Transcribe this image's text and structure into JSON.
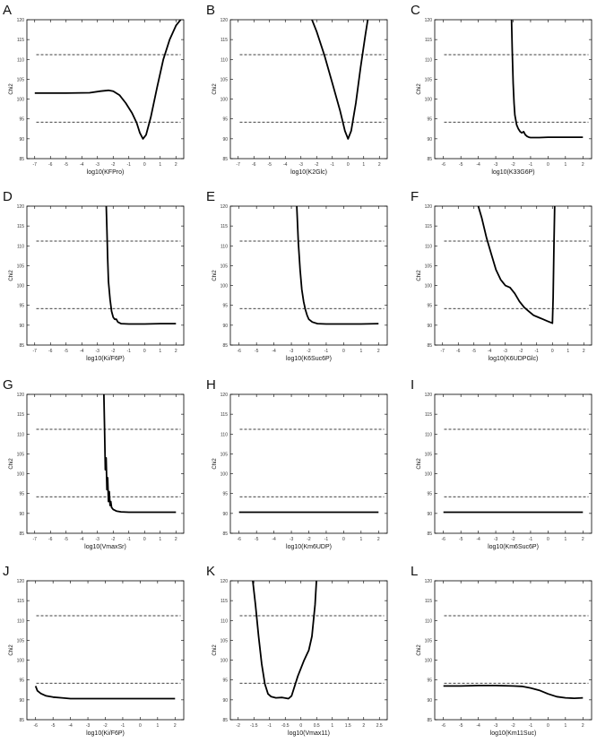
{
  "chart_data": [
    {
      "panel": "A",
      "type": "line",
      "xlabel": "log10(KFPro)",
      "ylabel": "Chi2",
      "xlim": [
        -7.5,
        2.5
      ],
      "ylim": [
        85,
        120
      ],
      "xticks": [
        -7,
        -6,
        -5,
        -4,
        -3,
        -2,
        -1,
        0,
        1,
        2
      ],
      "yticks": [
        85,
        90,
        95,
        100,
        105,
        110,
        115,
        120
      ],
      "hlines": [
        111.2,
        94.2
      ],
      "series": [
        {
          "x": [
            -7,
            -5,
            -3.5,
            -2.8,
            -2.3,
            -2,
            -1.6,
            -1.2,
            -0.8,
            -0.5,
            -0.3,
            -0.1,
            0.1,
            0.4,
            0.8,
            1.2,
            1.6,
            2,
            2.5
          ],
          "y": [
            101.5,
            101.5,
            101.6,
            102,
            102.2,
            102,
            101,
            99,
            96.5,
            94,
            91.5,
            90,
            91,
            95.5,
            103,
            110,
            115,
            118.5,
            121
          ]
        }
      ]
    },
    {
      "panel": "B",
      "type": "line",
      "xlabel": "log10(K2Glc)",
      "ylabel": "Chi2",
      "xlim": [
        -7.5,
        2.5
      ],
      "ylim": [
        85,
        120
      ],
      "xticks": [
        -7,
        -6,
        -5,
        -4,
        -3,
        -2,
        -1,
        0,
        1,
        2
      ],
      "yticks": [
        85,
        90,
        95,
        100,
        105,
        110,
        115,
        120
      ],
      "hlines": [
        111.2,
        94.2
      ],
      "series": [
        {
          "x": [
            -2.4,
            -2,
            -1.5,
            -1,
            -0.5,
            -0.2,
            0,
            0.2,
            0.5,
            0.8,
            1.1,
            1.3
          ],
          "y": [
            121,
            117,
            111,
            104,
            97,
            92,
            90,
            92,
            99,
            108,
            116,
            121
          ]
        }
      ]
    },
    {
      "panel": "C",
      "type": "line",
      "xlabel": "log10(K33G6P)",
      "ylabel": "Chi2",
      "xlim": [
        -6.5,
        2.5
      ],
      "ylim": [
        85,
        120
      ],
      "xticks": [
        -6,
        -5,
        -4,
        -3,
        -2,
        -1,
        0,
        1,
        2
      ],
      "yticks": [
        85,
        90,
        95,
        100,
        105,
        110,
        115,
        120
      ],
      "hlines": [
        111.2,
        94.2
      ],
      "series": [
        {
          "x": [
            -2.1,
            -2.05,
            -2,
            -1.95,
            -1.9,
            -1.8,
            -1.7,
            -1.6,
            -1.5,
            -1.4,
            -1.3,
            -1.2,
            -1.1,
            -1,
            -0.5,
            0,
            1,
            2
          ],
          "y": [
            121,
            112,
            104,
            99,
            96,
            93.5,
            92.5,
            91.8,
            91.5,
            91.8,
            91,
            90.6,
            90.4,
            90.3,
            90.3,
            90.4,
            90.4,
            90.4
          ]
        }
      ]
    },
    {
      "panel": "D",
      "type": "line",
      "xlabel": "log10(Ki/F6P)",
      "ylabel": "Chi2",
      "xlim": [
        -7.5,
        2.5
      ],
      "ylim": [
        85,
        120
      ],
      "xticks": [
        -7,
        -6,
        -5,
        -4,
        -3,
        -2,
        -1,
        0,
        1,
        2
      ],
      "yticks": [
        85,
        90,
        95,
        100,
        105,
        110,
        115,
        120
      ],
      "hlines": [
        111.2,
        94.2
      ],
      "series": [
        {
          "x": [
            -2.45,
            -2.4,
            -2.35,
            -2.3,
            -2.2,
            -2.1,
            -2,
            -1.9,
            -1.8,
            -1.7,
            -1.5,
            -1,
            0,
            1,
            2
          ],
          "y": [
            121,
            114,
            107,
            101,
            96.5,
            93.5,
            92,
            91.5,
            91.5,
            90.8,
            90.4,
            90.3,
            90.3,
            90.4,
            90.4
          ]
        }
      ]
    },
    {
      "panel": "E",
      "type": "line",
      "xlabel": "log10(K6Suc6P)",
      "ylabel": "Chi2",
      "xlim": [
        -6.5,
        2.5
      ],
      "ylim": [
        85,
        120
      ],
      "xticks": [
        -6,
        -5,
        -4,
        -3,
        -2,
        -1,
        0,
        1,
        2
      ],
      "yticks": [
        85,
        90,
        95,
        100,
        105,
        110,
        115,
        120
      ],
      "hlines": [
        111.2,
        94.2
      ],
      "series": [
        {
          "x": [
            -2.7,
            -2.6,
            -2.5,
            -2.4,
            -2.3,
            -2.2,
            -2.1,
            -2,
            -1.8,
            -1.5,
            -1,
            0,
            1,
            2
          ],
          "y": [
            121,
            111,
            104,
            99,
            96,
            94,
            92.5,
            91.5,
            90.8,
            90.4,
            90.3,
            90.3,
            90.3,
            90.4
          ]
        }
      ]
    },
    {
      "panel": "F",
      "type": "line",
      "xlabel": "log10(K6UDPGlc)",
      "ylabel": "Chi2",
      "xlim": [
        -7.5,
        2.5
      ],
      "ylim": [
        85,
        120
      ],
      "xticks": [
        -7,
        -6,
        -5,
        -4,
        -3,
        -2,
        -1,
        0,
        1,
        2
      ],
      "yticks": [
        85,
        90,
        95,
        100,
        105,
        110,
        115,
        120
      ],
      "hlines": [
        111.2,
        94.2
      ],
      "series": [
        {
          "x": [
            -4.8,
            -4.5,
            -4.2,
            -3.9,
            -3.6,
            -3.3,
            -3,
            -2.7,
            -2.4,
            -2.1,
            -1.8,
            -1.5,
            -1.2,
            -0.9,
            -0.6,
            -0.3,
            0,
            0.05,
            0.1,
            0.15
          ],
          "y": [
            121,
            117,
            112,
            108,
            104,
            101.5,
            100,
            99.5,
            98,
            96,
            94.5,
            93.5,
            92.5,
            92,
            91.5,
            91,
            90.5,
            97,
            110,
            121
          ]
        }
      ]
    },
    {
      "panel": "G",
      "type": "line",
      "xlabel": "log10(VmaxSr)",
      "ylabel": "Chi2",
      "xlim": [
        -7.5,
        2.5
      ],
      "ylim": [
        85,
        120
      ],
      "xticks": [
        -7,
        -6,
        -5,
        -4,
        -3,
        -2,
        -1,
        0,
        1,
        2
      ],
      "yticks": [
        85,
        90,
        95,
        100,
        105,
        110,
        115,
        120
      ],
      "hlines": [
        111.2,
        94.2
      ],
      "series": [
        {
          "x": [
            -2.6,
            -2.55,
            -2.5,
            -2.45,
            -2.4,
            -2.35,
            -2.3,
            -2.25,
            -2.2,
            -2.15,
            -2.1,
            -2,
            -1.8,
            -1.5,
            -1,
            0,
            1,
            2
          ],
          "y": [
            121,
            112,
            101,
            104,
            96,
            99,
            93,
            95.5,
            92,
            93,
            91.5,
            91,
            90.6,
            90.4,
            90.3,
            90.3,
            90.3,
            90.3
          ]
        }
      ]
    },
    {
      "panel": "H",
      "type": "line",
      "xlabel": "log10(Km6UDP)",
      "ylabel": "Chi2",
      "xlim": [
        -6.5,
        2.5
      ],
      "ylim": [
        85,
        120
      ],
      "xticks": [
        -6,
        -5,
        -4,
        -3,
        -2,
        -1,
        0,
        1,
        2
      ],
      "yticks": [
        85,
        90,
        95,
        100,
        105,
        110,
        115,
        120
      ],
      "hlines": [
        111.2,
        94.2
      ],
      "series": [
        {
          "x": [
            -6,
            -4,
            -2,
            0,
            2
          ],
          "y": [
            90.3,
            90.3,
            90.3,
            90.3,
            90.3
          ]
        }
      ]
    },
    {
      "panel": "I",
      "type": "line",
      "xlabel": "log10(Km6Suc6P)",
      "ylabel": "Chi2",
      "xlim": [
        -6.5,
        2.5
      ],
      "ylim": [
        85,
        120
      ],
      "xticks": [
        -6,
        -5,
        -4,
        -3,
        -2,
        -1,
        0,
        1,
        2
      ],
      "yticks": [
        85,
        90,
        95,
        100,
        105,
        110,
        115,
        120
      ],
      "hlines": [
        111.2,
        94.2
      ],
      "series": [
        {
          "x": [
            -6,
            -4,
            -2,
            0,
            2
          ],
          "y": [
            90.3,
            90.3,
            90.3,
            90.3,
            90.3
          ]
        }
      ]
    },
    {
      "panel": "J",
      "type": "line",
      "xlabel": "log10(Ki/F6P)",
      "ylabel": "Chi2",
      "xlim": [
        -6.5,
        2.5
      ],
      "ylim": [
        85,
        120
      ],
      "xticks": [
        -6,
        -5,
        -4,
        -3,
        -2,
        -1,
        0,
        1,
        2
      ],
      "yticks": [
        85,
        90,
        95,
        100,
        105,
        110,
        115,
        120
      ],
      "hlines": [
        111.2,
        94.2
      ],
      "series": [
        {
          "x": [
            -6,
            -5.9,
            -5.7,
            -5.4,
            -5,
            -4.5,
            -4,
            -3,
            -2,
            0,
            2
          ],
          "y": [
            93.5,
            92.3,
            91.6,
            91,
            90.7,
            90.5,
            90.3,
            90.3,
            90.3,
            90.3,
            90.3
          ]
        }
      ]
    },
    {
      "panel": "K",
      "type": "line",
      "xlabel": "log10(Vmax11)",
      "ylabel": "Chi2",
      "xlim": [
        -2.25,
        2.75
      ],
      "ylim": [
        85,
        120
      ],
      "xticks": [
        -2,
        -1.5,
        -1,
        -0.5,
        0,
        0.5,
        1,
        1.5,
        2,
        2.5
      ],
      "yticks": [
        85,
        90,
        95,
        100,
        105,
        110,
        115,
        120
      ],
      "hlines": [
        111.2,
        94.2
      ],
      "series": [
        {
          "x": [
            -1.55,
            -1.45,
            -1.35,
            -1.25,
            -1.15,
            -1.05,
            -0.95,
            -0.8,
            -0.6,
            -0.4,
            -0.3,
            -0.1,
            0.1,
            0.25,
            0.35,
            0.45,
            0.5
          ],
          "y": [
            121,
            114,
            106,
            99,
            94,
            91.5,
            90.8,
            90.5,
            90.6,
            90.3,
            91,
            96,
            100,
            102.5,
            106,
            114,
            121
          ]
        }
      ]
    },
    {
      "panel": "L",
      "type": "line",
      "xlabel": "log10(Km11Suc)",
      "ylabel": "Chi2",
      "xlim": [
        -6.5,
        2.5
      ],
      "ylim": [
        85,
        120
      ],
      "xticks": [
        -6,
        -5,
        -4,
        -3,
        -2,
        -1,
        0,
        1,
        2
      ],
      "yticks": [
        85,
        90,
        95,
        100,
        105,
        110,
        115,
        120
      ],
      "hlines": [
        111.2,
        94.2
      ],
      "series": [
        {
          "x": [
            -6,
            -5,
            -4,
            -3,
            -2,
            -1.5,
            -1,
            -0.5,
            0,
            0.5,
            1,
            1.5,
            2
          ],
          "y": [
            93.5,
            93.5,
            93.6,
            93.6,
            93.5,
            93.4,
            93,
            92.4,
            91.5,
            90.8,
            90.5,
            90.4,
            90.5
          ]
        }
      ]
    }
  ]
}
